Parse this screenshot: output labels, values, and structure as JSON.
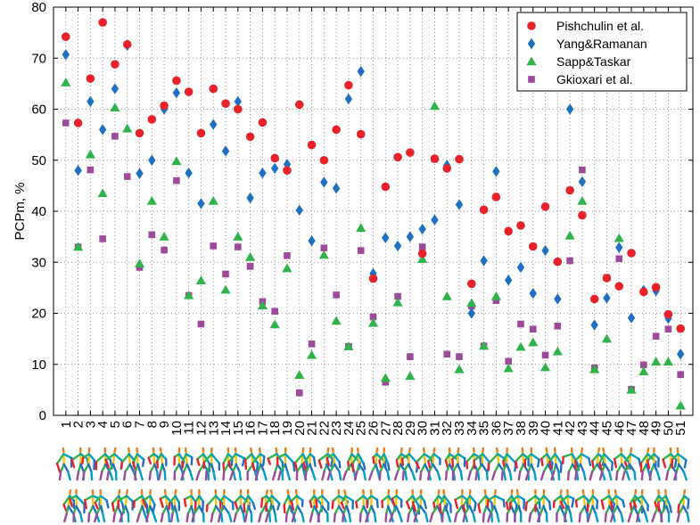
{
  "chart_data": {
    "type": "scatter",
    "title": "",
    "xlabel": "",
    "ylabel": "PCPm, %",
    "ylim": [
      0,
      80
    ],
    "yticks": [
      0,
      10,
      20,
      30,
      40,
      50,
      60,
      70,
      80
    ],
    "xlim": [
      0,
      52
    ],
    "x": [
      1,
      2,
      3,
      4,
      5,
      6,
      7,
      8,
      9,
      10,
      11,
      12,
      13,
      14,
      15,
      16,
      17,
      18,
      19,
      20,
      21,
      22,
      23,
      24,
      25,
      26,
      27,
      28,
      29,
      30,
      31,
      32,
      33,
      34,
      35,
      36,
      37,
      38,
      39,
      40,
      41,
      42,
      43,
      44,
      45,
      46,
      47,
      48,
      49,
      50,
      51
    ],
    "x_tick_labels": [
      "1",
      "2",
      "3",
      "4",
      "5",
      "6",
      "7",
      "8",
      "9",
      "10",
      "11",
      "12",
      "13",
      "14",
      "15",
      "16",
      "17",
      "18",
      "19",
      "20",
      "21",
      "22",
      "23",
      "24",
      "25",
      "26",
      "27",
      "28",
      "29",
      "30",
      "31",
      "32",
      "33",
      "34",
      "35",
      "36",
      "37",
      "38",
      "39",
      "40",
      "41",
      "42",
      "43",
      "44",
      "45",
      "46",
      "47",
      "48",
      "49",
      "50",
      "51"
    ],
    "grid": "dotted",
    "legend_position": "top-right",
    "series": [
      {
        "name": "Pishchulin et al.",
        "marker": "circle",
        "color": "#e8222b",
        "values": [
          74.2,
          57.3,
          66,
          77,
          68.8,
          72.7,
          55.3,
          58,
          60.7,
          65.6,
          63.4,
          55.3,
          64,
          61.1,
          60,
          54.6,
          57.4,
          50.4,
          48,
          60.9,
          53,
          50,
          56,
          64.7,
          55.1,
          26.8,
          44.8,
          50.6,
          51.5,
          31.7,
          50.3,
          48.4,
          50.2,
          25.8,
          40.3,
          42.8,
          36.1,
          37.2,
          33.1,
          40.9,
          30.1,
          44.1,
          39.2,
          22.8,
          26.9,
          25.3,
          31.8,
          24.2,
          25.1,
          19.8,
          17
        ]
      },
      {
        "name": "Yang&Ramanan",
        "marker": "diamond",
        "color": "#1f70c1",
        "values": [
          70.7,
          48,
          61.5,
          56,
          64,
          72.5,
          47.4,
          50,
          60,
          63.2,
          47.5,
          41.5,
          57,
          51.8,
          61.5,
          42.6,
          47.5,
          48.4,
          49.2,
          40.2,
          34.2,
          45.7,
          44.5,
          62,
          67.4,
          27.8,
          34.8,
          33.2,
          35,
          36.5,
          38.3,
          49,
          41.3,
          20,
          30.3,
          47.8,
          26.5,
          29,
          23.9,
          32.3,
          22.8,
          60,
          45.8,
          17.7,
          23,
          32.9,
          19.1,
          24.5,
          24.4,
          19,
          12
        ]
      },
      {
        "name": "Sapp&Taskar",
        "marker": "triangle",
        "color": "#2fb34a",
        "values": [
          65.2,
          33,
          51.1,
          43.5,
          60.3,
          56.2,
          29.7,
          42,
          35,
          49.8,
          23.5,
          26.4,
          42,
          24.6,
          35,
          31,
          21.5,
          17.8,
          28.8,
          7.9,
          11.8,
          31.4,
          18.5,
          13.5,
          36.7,
          18.1,
          7.3,
          22.1,
          7.7,
          30.6,
          60.6,
          23.3,
          9,
          22,
          13.6,
          23.3,
          9.2,
          13.4,
          14.3,
          9.4,
          12.5,
          35.2,
          42,
          9,
          15,
          34.7,
          5,
          8.6,
          10.5,
          10.5,
          1.9
        ]
      },
      {
        "name": "Gkioxari et al.",
        "marker": "square",
        "color": "#9e4a9b",
        "values": [
          57.3,
          33,
          48.1,
          34.6,
          54.7,
          46.8,
          29,
          35.4,
          32.4,
          46,
          23.5,
          17.9,
          33.2,
          27.7,
          33,
          29.2,
          22.3,
          20.4,
          31.3,
          4.4,
          14,
          32.8,
          23.6,
          13.5,
          32.3,
          19.3,
          6.5,
          23.3,
          11.5,
          33,
          50.2,
          12,
          11.5,
          21.4,
          13.6,
          22.5,
          10.6,
          17.9,
          16.9,
          11.8,
          17.5,
          30.3,
          48.1,
          9.3,
          27,
          30.7,
          5.1,
          9.9,
          15.5,
          16.9,
          8
        ]
      }
    ]
  }
}
